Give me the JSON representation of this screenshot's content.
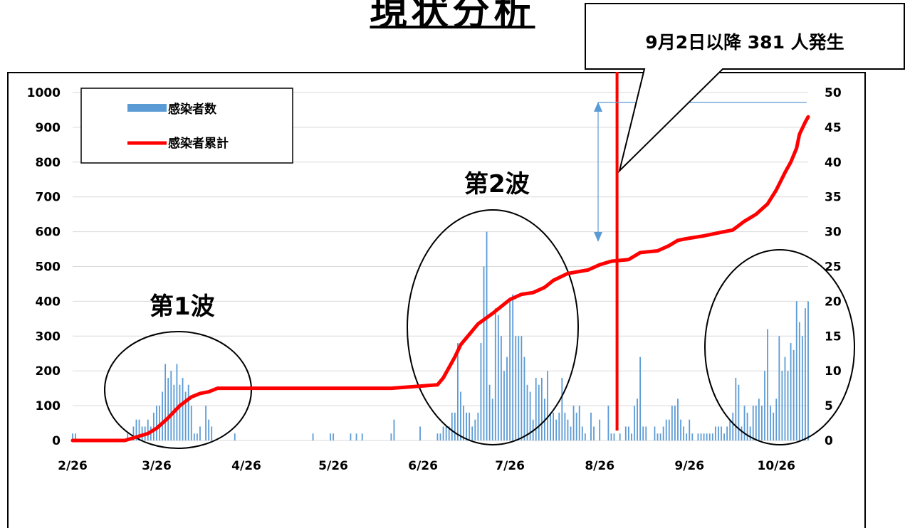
{
  "title": "現状分析",
  "callout": "9月2日以降 381 人発生",
  "wave_labels": {
    "first": "第1波",
    "second": "第2波"
  },
  "colors": {
    "bars": "#5b9bd5",
    "cumulative": "#ff0000",
    "marker": "#ff0000",
    "arrow": "#5b9bd5"
  },
  "chart_data": {
    "type": "bar",
    "title": "",
    "x_tick_labels": [
      "2/26",
      "3/26",
      "4/26",
      "5/26",
      "6/26",
      "7/26",
      "8/26",
      "9/26",
      "10/26"
    ],
    "x_range_days": [
      0,
      254
    ],
    "marker_day": 188,
    "y_left": {
      "ylim": [
        0,
        1000
      ],
      "ticks": [
        0,
        100,
        200,
        300,
        400,
        500,
        600,
        700,
        800,
        900,
        1000
      ]
    },
    "y_right": {
      "ylim": [
        0,
        50
      ],
      "ticks": [
        0,
        5,
        10,
        15,
        20,
        25,
        30,
        35,
        40,
        45,
        50
      ]
    },
    "grid": true,
    "legend": {
      "position": "top-left",
      "entries": [
        "感染者数",
        "感染者累計"
      ]
    },
    "series": [
      {
        "name": "感染者数",
        "type": "bar",
        "axis": "right",
        "values": [
          {
            "d": 0,
            "v": 1
          },
          {
            "d": 1,
            "v": 1
          },
          {
            "d": 19,
            "v": 1
          },
          {
            "d": 21,
            "v": 2
          },
          {
            "d": 22,
            "v": 3
          },
          {
            "d": 23,
            "v": 3
          },
          {
            "d": 24,
            "v": 2
          },
          {
            "d": 25,
            "v": 2
          },
          {
            "d": 26,
            "v": 3
          },
          {
            "d": 27,
            "v": 2
          },
          {
            "d": 28,
            "v": 4
          },
          {
            "d": 29,
            "v": 5
          },
          {
            "d": 30,
            "v": 5
          },
          {
            "d": 31,
            "v": 7
          },
          {
            "d": 32,
            "v": 11
          },
          {
            "d": 33,
            "v": 9
          },
          {
            "d": 34,
            "v": 10
          },
          {
            "d": 35,
            "v": 8
          },
          {
            "d": 36,
            "v": 11
          },
          {
            "d": 37,
            "v": 8
          },
          {
            "d": 38,
            "v": 9
          },
          {
            "d": 39,
            "v": 7
          },
          {
            "d": 40,
            "v": 8
          },
          {
            "d": 41,
            "v": 5
          },
          {
            "d": 42,
            "v": 1
          },
          {
            "d": 43,
            "v": 1
          },
          {
            "d": 44,
            "v": 2
          },
          {
            "d": 46,
            "v": 5
          },
          {
            "d": 47,
            "v": 3
          },
          {
            "d": 48,
            "v": 2
          },
          {
            "d": 56,
            "v": 1
          },
          {
            "d": 83,
            "v": 1
          },
          {
            "d": 89,
            "v": 1
          },
          {
            "d": 90,
            "v": 1
          },
          {
            "d": 96,
            "v": 1
          },
          {
            "d": 98,
            "v": 1
          },
          {
            "d": 100,
            "v": 1
          },
          {
            "d": 110,
            "v": 1
          },
          {
            "d": 111,
            "v": 3
          },
          {
            "d": 120,
            "v": 2
          },
          {
            "d": 126,
            "v": 1
          },
          {
            "d": 127,
            "v": 1
          },
          {
            "d": 128,
            "v": 2
          },
          {
            "d": 129,
            "v": 2
          },
          {
            "d": 130,
            "v": 2
          },
          {
            "d": 131,
            "v": 4
          },
          {
            "d": 132,
            "v": 4
          },
          {
            "d": 133,
            "v": 14
          },
          {
            "d": 134,
            "v": 7
          },
          {
            "d": 135,
            "v": 5
          },
          {
            "d": 136,
            "v": 4
          },
          {
            "d": 137,
            "v": 4
          },
          {
            "d": 138,
            "v": 2
          },
          {
            "d": 139,
            "v": 3
          },
          {
            "d": 140,
            "v": 4
          },
          {
            "d": 141,
            "v": 14
          },
          {
            "d": 142,
            "v": 25
          },
          {
            "d": 143,
            "v": 30
          },
          {
            "d": 144,
            "v": 8
          },
          {
            "d": 145,
            "v": 6
          },
          {
            "d": 146,
            "v": 19
          },
          {
            "d": 147,
            "v": 18
          },
          {
            "d": 148,
            "v": 15
          },
          {
            "d": 149,
            "v": 10
          },
          {
            "d": 150,
            "v": 12
          },
          {
            "d": 151,
            "v": 20
          },
          {
            "d": 152,
            "v": 21
          },
          {
            "d": 153,
            "v": 15
          },
          {
            "d": 154,
            "v": 15
          },
          {
            "d": 155,
            "v": 15
          },
          {
            "d": 156,
            "v": 12
          },
          {
            "d": 157,
            "v": 8
          },
          {
            "d": 158,
            "v": 7
          },
          {
            "d": 159,
            "v": 3
          },
          {
            "d": 160,
            "v": 9
          },
          {
            "d": 161,
            "v": 8
          },
          {
            "d": 162,
            "v": 9
          },
          {
            "d": 163,
            "v": 6
          },
          {
            "d": 164,
            "v": 10
          },
          {
            "d": 165,
            "v": 4
          },
          {
            "d": 166,
            "v": 4
          },
          {
            "d": 167,
            "v": 3
          },
          {
            "d": 168,
            "v": 4
          },
          {
            "d": 169,
            "v": 9
          },
          {
            "d": 170,
            "v": 4
          },
          {
            "d": 171,
            "v": 3
          },
          {
            "d": 172,
            "v": 2
          },
          {
            "d": 173,
            "v": 5
          },
          {
            "d": 174,
            "v": 4
          },
          {
            "d": 175,
            "v": 5
          },
          {
            "d": 176,
            "v": 2
          },
          {
            "d": 177,
            "v": 1
          },
          {
            "d": 179,
            "v": 4
          },
          {
            "d": 180,
            "v": 2
          },
          {
            "d": 182,
            "v": 3
          },
          {
            "d": 185,
            "v": 5
          },
          {
            "d": 186,
            "v": 1
          },
          {
            "d": 187,
            "v": 1
          },
          {
            "d": 189,
            "v": 1
          },
          {
            "d": 191,
            "v": 2
          },
          {
            "d": 192,
            "v": 2
          },
          {
            "d": 193,
            "v": 1
          },
          {
            "d": 194,
            "v": 5
          },
          {
            "d": 195,
            "v": 6
          },
          {
            "d": 196,
            "v": 12
          },
          {
            "d": 197,
            "v": 2
          },
          {
            "d": 198,
            "v": 2
          },
          {
            "d": 201,
            "v": 2
          },
          {
            "d": 202,
            "v": 1
          },
          {
            "d": 203,
            "v": 1
          },
          {
            "d": 204,
            "v": 2
          },
          {
            "d": 205,
            "v": 3
          },
          {
            "d": 206,
            "v": 3
          },
          {
            "d": 207,
            "v": 5
          },
          {
            "d": 208,
            "v": 5
          },
          {
            "d": 209,
            "v": 6
          },
          {
            "d": 210,
            "v": 3
          },
          {
            "d": 211,
            "v": 2
          },
          {
            "d": 212,
            "v": 1
          },
          {
            "d": 213,
            "v": 3
          },
          {
            "d": 214,
            "v": 1
          },
          {
            "d": 216,
            "v": 1
          },
          {
            "d": 217,
            "v": 1
          },
          {
            "d": 218,
            "v": 1
          },
          {
            "d": 219,
            "v": 1
          },
          {
            "d": 220,
            "v": 1
          },
          {
            "d": 221,
            "v": 1
          },
          {
            "d": 222,
            "v": 2
          },
          {
            "d": 223,
            "v": 2
          },
          {
            "d": 224,
            "v": 2
          },
          {
            "d": 225,
            "v": 1
          },
          {
            "d": 226,
            "v": 2
          },
          {
            "d": 227,
            "v": 3
          },
          {
            "d": 228,
            "v": 4
          },
          {
            "d": 229,
            "v": 9
          },
          {
            "d": 230,
            "v": 8
          },
          {
            "d": 231,
            "v": 2
          },
          {
            "d": 232,
            "v": 5
          },
          {
            "d": 233,
            "v": 4
          },
          {
            "d": 234,
            "v": 2
          },
          {
            "d": 235,
            "v": 5
          },
          {
            "d": 236,
            "v": 5
          },
          {
            "d": 237,
            "v": 6
          },
          {
            "d": 238,
            "v": 5
          },
          {
            "d": 239,
            "v": 10
          },
          {
            "d": 240,
            "v": 16
          },
          {
            "d": 241,
            "v": 5
          },
          {
            "d": 242,
            "v": 4
          },
          {
            "d": 243,
            "v": 6
          },
          {
            "d": 244,
            "v": 15
          },
          {
            "d": 245,
            "v": 10
          },
          {
            "d": 246,
            "v": 12
          },
          {
            "d": 247,
            "v": 10
          },
          {
            "d": 248,
            "v": 14
          },
          {
            "d": 249,
            "v": 13
          },
          {
            "d": 250,
            "v": 20
          },
          {
            "d": 251,
            "v": 17
          },
          {
            "d": 252,
            "v": 15
          },
          {
            "d": 253,
            "v": 19
          },
          {
            "d": 254,
            "v": 20
          }
        ]
      },
      {
        "name": "感染者累計",
        "type": "line",
        "axis": "left",
        "points": [
          {
            "d": 0,
            "v": 0
          },
          {
            "d": 18,
            "v": 0
          },
          {
            "d": 22,
            "v": 10
          },
          {
            "d": 26,
            "v": 20
          },
          {
            "d": 29,
            "v": 35
          },
          {
            "d": 33,
            "v": 65
          },
          {
            "d": 37,
            "v": 100
          },
          {
            "d": 41,
            "v": 125
          },
          {
            "d": 44,
            "v": 135
          },
          {
            "d": 47,
            "v": 140
          },
          {
            "d": 50,
            "v": 150
          },
          {
            "d": 110,
            "v": 150
          },
          {
            "d": 118,
            "v": 155
          },
          {
            "d": 126,
            "v": 160
          },
          {
            "d": 128,
            "v": 180
          },
          {
            "d": 132,
            "v": 240
          },
          {
            "d": 134,
            "v": 275
          },
          {
            "d": 137,
            "v": 305
          },
          {
            "d": 140,
            "v": 335
          },
          {
            "d": 145,
            "v": 365
          },
          {
            "d": 151,
            "v": 405
          },
          {
            "d": 155,
            "v": 420
          },
          {
            "d": 159,
            "v": 425
          },
          {
            "d": 163,
            "v": 440
          },
          {
            "d": 166,
            "v": 460
          },
          {
            "d": 171,
            "v": 480
          },
          {
            "d": 178,
            "v": 490
          },
          {
            "d": 182,
            "v": 505
          },
          {
            "d": 186,
            "v": 515
          },
          {
            "d": 192,
            "v": 520
          },
          {
            "d": 196,
            "v": 540
          },
          {
            "d": 202,
            "v": 545
          },
          {
            "d": 206,
            "v": 560
          },
          {
            "d": 209,
            "v": 575
          },
          {
            "d": 212,
            "v": 580
          },
          {
            "d": 218,
            "v": 588
          },
          {
            "d": 222,
            "v": 595
          },
          {
            "d": 228,
            "v": 605
          },
          {
            "d": 232,
            "v": 630
          },
          {
            "d": 236,
            "v": 650
          },
          {
            "d": 240,
            "v": 680
          },
          {
            "d": 243,
            "v": 720
          },
          {
            "d": 246,
            "v": 770
          },
          {
            "d": 248,
            "v": 800
          },
          {
            "d": 250,
            "v": 840
          },
          {
            "d": 251,
            "v": 880
          },
          {
            "d": 253,
            "v": 915
          },
          {
            "d": 254,
            "v": 930
          }
        ]
      }
    ],
    "annotations": [
      "第1波",
      "第2波",
      "9月2日以降 381 人発生"
    ]
  }
}
